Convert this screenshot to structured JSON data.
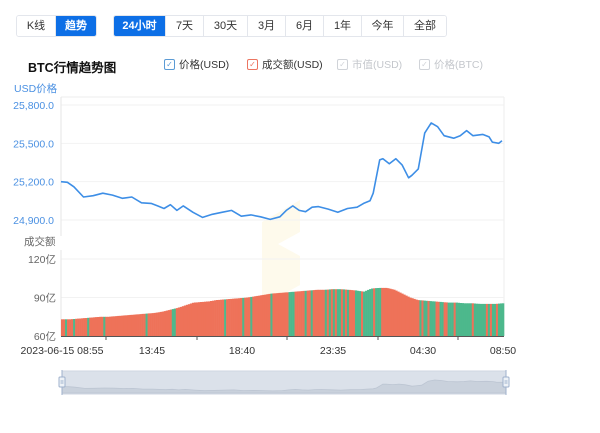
{
  "mode_tabs": [
    {
      "label": "K线",
      "active": false
    },
    {
      "label": "趋势",
      "active": true
    }
  ],
  "range_tabs": [
    {
      "label": "24小时",
      "active": true
    },
    {
      "label": "7天",
      "active": false
    },
    {
      "label": "30天",
      "active": false
    },
    {
      "label": "3月",
      "active": false
    },
    {
      "label": "6月",
      "active": false
    },
    {
      "label": "1年",
      "active": false
    },
    {
      "label": "今年",
      "active": false
    },
    {
      "label": "全部",
      "active": false
    }
  ],
  "title": "BTC行情趋势图",
  "legend": [
    {
      "label": "价格(USD)",
      "checked": true,
      "color": "#5b9bd5"
    },
    {
      "label": "成交额(USD)",
      "checked": true,
      "color": "#ec7561"
    },
    {
      "label": "市值(USD)",
      "checked": false,
      "color": "#d0d3d8"
    },
    {
      "label": "价格(BTC)",
      "checked": false,
      "color": "#d0d3d8"
    }
  ],
  "price_axis_title": "USD价格",
  "volume_axis_title": "成交额",
  "colors": {
    "price_line": "#3d8ee6",
    "volume_up": "#ee7259",
    "volume_down": "#4db88c",
    "axis_text_price": "#4a90e2",
    "axis_text_volume": "#666666",
    "active_tab": "#0d6fe6",
    "datazoom_fill": "#dbe1ea"
  },
  "chart_data": [
    {
      "type": "line",
      "title": "BTC行情趋势图 - 价格(USD)",
      "ylabel": "USD价格",
      "ylim": [
        24900,
        25800
      ],
      "yticks": [
        "25,800.0",
        "25,500.0",
        "25,200.0",
        "24,900.0"
      ],
      "x": [
        "2023-06-15 08:55",
        "13:45",
        "18:40",
        "23:35",
        "04:30",
        "08:50"
      ],
      "grid": true,
      "series": [
        {
          "name": "价格(USD)",
          "points": [
            [
              0,
              25200
            ],
            [
              2,
              25195
            ],
            [
              4,
              25160
            ],
            [
              7,
              25080
            ],
            [
              10,
              25090
            ],
            [
              13,
              25110
            ],
            [
              16,
              25095
            ],
            [
              19,
              25070
            ],
            [
              22,
              25080
            ],
            [
              25,
              25035
            ],
            [
              28,
              25030
            ],
            [
              30,
              25010
            ],
            [
              32,
              24990
            ],
            [
              34,
              25020
            ],
            [
              36,
              24975
            ],
            [
              38,
              25010
            ],
            [
              41,
              24960
            ],
            [
              44,
              24920
            ],
            [
              47,
              24945
            ],
            [
              50,
              24960
            ],
            [
              53,
              24975
            ],
            [
              56,
              24930
            ],
            [
              59,
              24940
            ],
            [
              62,
              24925
            ],
            [
              65,
              24905
            ],
            [
              68,
              24925
            ],
            [
              70,
              24975
            ],
            [
              72,
              25010
            ],
            [
              74,
              24975
            ],
            [
              76,
              24965
            ],
            [
              78,
              25000
            ],
            [
              80,
              25005
            ],
            [
              83,
              24985
            ],
            [
              86,
              24960
            ],
            [
              89,
              24990
            ],
            [
              92,
              25000
            ],
            [
              94,
              25030
            ],
            [
              96,
              25050
            ],
            [
              97,
              25110
            ],
            [
              99,
              25370
            ],
            [
              100,
              25380
            ],
            [
              102,
              25340
            ],
            [
              104,
              25380
            ],
            [
              106,
              25330
            ],
            [
              108,
              25230
            ],
            [
              109,
              25250
            ],
            [
              111,
              25300
            ],
            [
              113,
              25580
            ],
            [
              115,
              25660
            ],
            [
              117,
              25630
            ],
            [
              119,
              25560
            ],
            [
              122,
              25540
            ],
            [
              124,
              25560
            ],
            [
              126,
              25600
            ],
            [
              128,
              25560
            ],
            [
              131,
              25570
            ],
            [
              133,
              25550
            ],
            [
              134,
              25510
            ],
            [
              136,
              25500
            ],
            [
              137,
              25520
            ]
          ],
          "x_range_index": [
            0,
            137
          ]
        }
      ]
    },
    {
      "type": "bar",
      "title": "成交额(USD)",
      "ylabel": "成交额",
      "ylim": [
        60,
        120
      ],
      "yunit": "亿",
      "yticks": [
        "120亿",
        "90亿",
        "60亿"
      ],
      "x": [
        "2023-06-15 08:55",
        "13:45",
        "18:40",
        "23:35",
        "04:30",
        "08:50"
      ],
      "series": [
        {
          "name": "成交额(USD)",
          "values_yi": [
            73,
            73,
            73.5,
            74,
            74.5,
            75,
            75,
            75.5,
            76,
            76.5,
            77,
            77.5,
            78,
            79,
            80.5,
            82,
            84,
            86,
            86.5,
            87,
            88,
            88.5,
            89,
            89.5,
            90,
            91,
            92,
            93,
            93.5,
            94,
            94.5,
            95,
            95.5,
            96,
            96,
            96.5,
            96.5,
            96,
            95.5,
            94.5,
            97,
            97.5,
            97.5,
            96,
            93,
            90,
            88,
            87.5,
            87,
            86.5,
            86,
            86,
            85.5,
            85.5,
            85,
            85,
            85,
            85.5
          ]
        }
      ]
    }
  ],
  "datazoom": {
    "start": 0,
    "end": 100
  }
}
